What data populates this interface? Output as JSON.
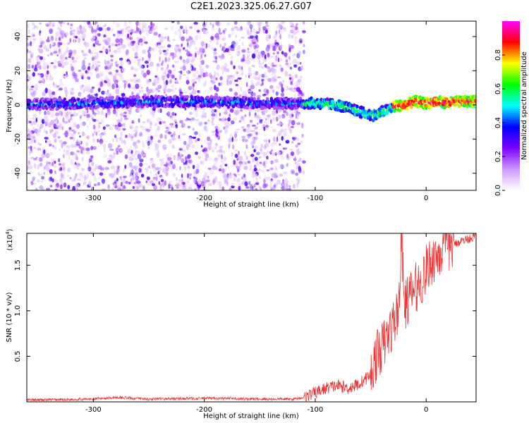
{
  "figure": {
    "title": "C2E1.2023.325.06.27.G07"
  },
  "chart_data": [
    {
      "type": "heatmap",
      "title": "C2E1.2023.325.06.27.G07",
      "xlabel": "Height of straight line (km)",
      "ylabel": "Frequency (Hz)",
      "xlim": [
        -360,
        45
      ],
      "ylim": [
        -50,
        49
      ],
      "x_ticks": [
        -300,
        -200,
        -100,
        0
      ],
      "y_ticks": [
        -40,
        -20,
        0,
        20,
        40
      ],
      "colorbar": {
        "label": "Normalized spectral amplitude",
        "range": [
          0.0,
          1.0
        ],
        "ticks": [
          0.0,
          0.2,
          0.4,
          0.6,
          0.8
        ],
        "colormap": [
          "#ffffff",
          "#cc99ff",
          "#7a00ff",
          "#0000ff",
          "#00ffff",
          "#00ff00",
          "#ffff00",
          "#ff0000",
          "#ff00ff"
        ]
      },
      "ridge": {
        "description": "main frequency ridge",
        "x": [
          -360,
          -300,
          -250,
          -200,
          -150,
          -120,
          -100,
          -80,
          -70,
          -60,
          -50,
          -45,
          -40,
          -35,
          -30,
          -20,
          -10,
          0,
          10,
          20,
          30,
          45
        ],
        "frequency_hz": [
          0,
          1,
          2,
          2,
          1,
          1,
          1,
          0,
          -2,
          -4,
          -6,
          -6,
          -4,
          -3,
          -1,
          0,
          2,
          1,
          2,
          1,
          2,
          2
        ]
      },
      "noise_extent_x": [
        -360,
        -110
      ]
    },
    {
      "type": "line",
      "xlabel": "Height of straight line (km)",
      "ylabel": "SNR (10 * v/v)",
      "y_multiplier_label": "(x10",
      "y_multiplier_exp": "4",
      "y_multiplier_close": ")",
      "xlim": [
        -360,
        45
      ],
      "ylim": [
        0,
        1.85
      ],
      "x_ticks": [
        -300,
        -200,
        -100,
        0
      ],
      "y_ticks": [
        0.5,
        1.0,
        1.5
      ],
      "y_tick_labels": [
        "0.5",
        "1.0",
        "1.5"
      ],
      "color": "#ee3333",
      "series": [
        {
          "x": [
            -360,
            -300,
            -280,
            -250,
            -200,
            -150,
            -120,
            -110,
            -100,
            -90,
            -80,
            -70,
            -60,
            -50,
            -45,
            -40,
            -35,
            -30,
            -25,
            -22,
            -20,
            -15,
            -10,
            -5,
            0,
            5,
            10,
            20,
            30,
            40,
            45
          ],
          "values": [
            0.02,
            0.03,
            0.05,
            0.03,
            0.04,
            0.03,
            0.03,
            0.05,
            0.1,
            0.15,
            0.18,
            0.15,
            0.2,
            0.3,
            0.5,
            0.6,
            0.7,
            0.85,
            1.0,
            1.85,
            1.05,
            1.15,
            1.25,
            1.3,
            1.45,
            1.55,
            1.62,
            1.7,
            1.76,
            1.8,
            1.82
          ]
        }
      ]
    }
  ]
}
